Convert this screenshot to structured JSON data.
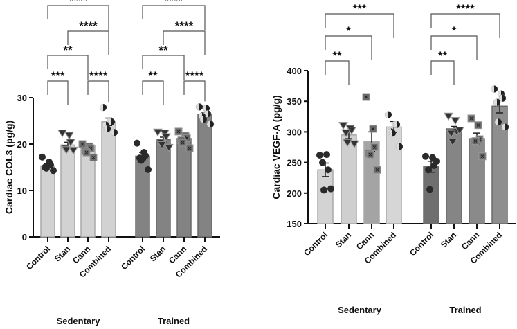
{
  "chart_data": [
    {
      "type": "bar",
      "ylabel": "Cardiac COL3 (pg/g)",
      "ylim": [
        0,
        30
      ],
      "yticks": [
        0,
        10,
        20,
        30
      ],
      "categories": [
        "Control",
        "Stan",
        "Cann",
        "Combined"
      ],
      "groups": [
        "Sedentary",
        "Trained"
      ],
      "series": [
        {
          "name": "Sedentary",
          "values": [
            15.3,
            19.8,
            19.6,
            24.8
          ],
          "sem": [
            0.4,
            0.6,
            0.4,
            0.8
          ],
          "points": [
            [
              17.2,
              16.1,
              15.5,
              15.0,
              14.8,
              14.3
            ],
            [
              22.3,
              21.8,
              20.3,
              19.0,
              18.7,
              18.6
            ],
            [
              20.0,
              19.5,
              19.1,
              18.5,
              18.2,
              17.1
            ],
            [
              27.9,
              24.9,
              24.8,
              24.1,
              23.3,
              22.5
            ]
          ]
        },
        {
          "name": "Trained",
          "values": [
            17.4,
            21.0,
            21.2,
            26.3
          ],
          "sem": [
            0.8,
            0.5,
            0.5,
            0.6
          ],
          "points": [
            [
              20.2,
              18.2,
              17.5,
              17.0,
              16.5,
              14.5
            ],
            [
              22.5,
              22.3,
              21.5,
              20.3,
              19.8,
              19.2
            ],
            [
              22.7,
              21.8,
              21.3,
              20.8,
              20.3,
              19.1
            ],
            [
              28.0,
              27.7,
              26.5,
              26.0,
              25.3,
              24.3
            ]
          ]
        }
      ],
      "comparisons": [
        {
          "group": 0,
          "from": 0,
          "to": 3,
          "label": "****",
          "level": 4
        },
        {
          "group": 0,
          "from": 1,
          "to": 3,
          "label": "****",
          "level": 3
        },
        {
          "group": 0,
          "from": 0,
          "to": 2,
          "label": "**",
          "level": 2
        },
        {
          "group": 0,
          "from": 0,
          "to": 1,
          "label": "***",
          "level": 1
        },
        {
          "group": 0,
          "from": 2,
          "to": 3,
          "label": "****",
          "level": 1
        },
        {
          "group": 1,
          "from": 0,
          "to": 3,
          "label": "****",
          "level": 4
        },
        {
          "group": 1,
          "from": 1,
          "to": 3,
          "label": "****",
          "level": 3
        },
        {
          "group": 1,
          "from": 0,
          "to": 2,
          "label": "**",
          "level": 2
        },
        {
          "group": 1,
          "from": 0,
          "to": 1,
          "label": "**",
          "level": 1
        },
        {
          "group": 1,
          "from": 2,
          "to": 3,
          "label": "****",
          "level": 1
        }
      ]
    },
    {
      "type": "bar",
      "ylabel": "Cardiac VEGF-A (pg/g)",
      "ylim": [
        150,
        400
      ],
      "yticks": [
        150,
        200,
        250,
        300,
        350,
        400
      ],
      "categories": [
        "Control",
        "Stan",
        "Cann",
        "Combined"
      ],
      "groups": [
        "Sedentary",
        "Trained"
      ],
      "series": [
        {
          "name": "Sedentary",
          "values": [
            238,
            295,
            284,
            308
          ],
          "sem": [
            11,
            6,
            16,
            9
          ],
          "points": [
            [
              262,
              263,
              238,
              250,
              205,
              207
            ],
            [
              310,
              305,
              302,
              298,
              282,
              280
            ],
            [
              357,
              305,
              275,
              265,
              263,
              238
            ],
            [
              328,
              312,
              312,
              300,
              298,
              276
            ]
          ]
        },
        {
          "name": "Trained",
          "values": [
            243,
            305,
            289,
            342
          ],
          "sem": [
            9,
            4,
            9,
            11
          ],
          "points": [
            [
              260,
              258,
              245,
              238,
              206,
              252
            ],
            [
              325,
              318,
              300,
              297,
              283,
              302
            ],
            [
              322,
              311,
              288,
              284,
              285,
              260
            ],
            [
              370,
              362,
              355,
              348,
              316,
              308
            ]
          ]
        }
      ],
      "comparisons": [
        {
          "group": 0,
          "from": 0,
          "to": 3,
          "label": "***",
          "level": 3
        },
        {
          "group": 0,
          "from": 0,
          "to": 2,
          "label": "*",
          "level": 2
        },
        {
          "group": 0,
          "from": 0,
          "to": 1,
          "label": "**",
          "level": 1
        },
        {
          "group": 1,
          "from": 0,
          "to": 3,
          "label": "****",
          "level": 3
        },
        {
          "group": 1,
          "from": 0,
          "to": 2,
          "label": "*",
          "level": 2
        },
        {
          "group": 1,
          "from": 0,
          "to": 1,
          "label": "**",
          "level": 1
        }
      ]
    }
  ],
  "colors": {
    "sedentary": "#d2d2d2",
    "sedentary_edge": "#a9a9a9",
    "trained": "#838383",
    "trained_edge": "#6a6a6a",
    "points": "#2a2a2a"
  }
}
